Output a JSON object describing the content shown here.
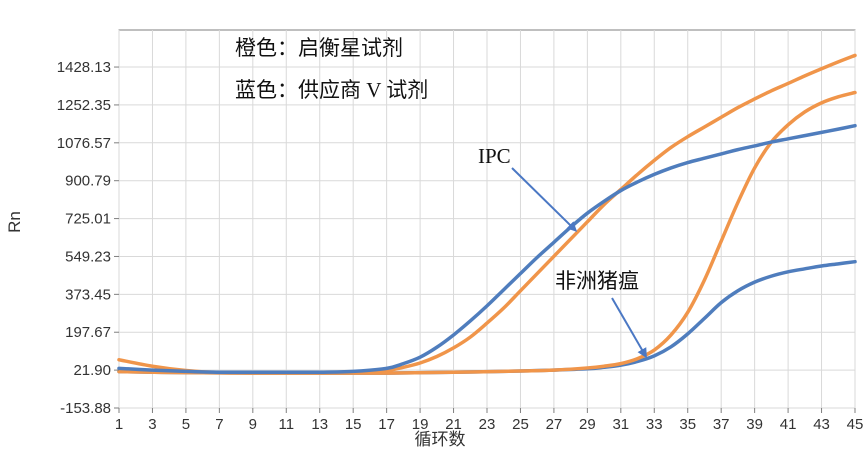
{
  "chart_data": {
    "type": "line",
    "xlabel": "循环数",
    "ylabel": "Rn",
    "xlim": [
      1,
      45
    ],
    "ylim": [
      -153.88,
      1600
    ],
    "grid": true,
    "x_ticks": [
      1,
      3,
      5,
      7,
      9,
      11,
      13,
      15,
      17,
      19,
      21,
      23,
      25,
      27,
      29,
      31,
      33,
      35,
      37,
      39,
      41,
      43,
      45
    ],
    "y_ticks": [
      {
        "label": "-153.88",
        "value": -153.88
      },
      {
        "label": "21.90",
        "value": 21.9
      },
      {
        "label": "197.67",
        "value": 197.67
      },
      {
        "label": "373.45",
        "value": 373.45
      },
      {
        "label": "549.23",
        "value": 549.23
      },
      {
        "label": "725.01",
        "value": 725.01
      },
      {
        "label": "900.79",
        "value": 900.79
      },
      {
        "label": "1076.57",
        "value": 1076.57
      },
      {
        "label": "1252.35",
        "value": 1252.35
      },
      {
        "label": "1428.13",
        "value": 1428.13
      }
    ],
    "legend_lines": [
      "橙色：启衡星试剂",
      "蓝色：供应商 V 试剂"
    ],
    "colors": {
      "orange": "#f0954a",
      "blue": "#4f7dbd",
      "arrow": "#4b78c4",
      "grid": "#d9d9d9",
      "axis": "#7f7f7f"
    },
    "series": [
      {
        "color": "orange",
        "x": [
          1,
          3,
          5,
          7,
          9,
          11,
          13,
          15,
          17,
          18,
          19,
          20,
          21,
          22,
          23,
          24,
          25,
          26,
          27,
          28,
          29,
          30,
          31,
          32,
          33,
          34,
          35,
          36,
          37,
          38,
          39,
          40,
          41,
          42,
          43,
          44,
          45
        ],
        "values": [
          70,
          40,
          20,
          10,
          10,
          10,
          10,
          12,
          20,
          35,
          55,
          85,
          125,
          175,
          240,
          310,
          390,
          470,
          550,
          630,
          710,
          790,
          860,
          930,
          995,
          1055,
          1105,
          1150,
          1195,
          1240,
          1280,
          1318,
          1352,
          1387,
          1420,
          1452,
          1482
        ]
      },
      {
        "color": "blue",
        "x": [
          1,
          3,
          5,
          7,
          9,
          11,
          13,
          15,
          17,
          18,
          19,
          20,
          21,
          22,
          23,
          24,
          25,
          26,
          27,
          28,
          29,
          30,
          31,
          32,
          33,
          34,
          35,
          36,
          37,
          38,
          39,
          40,
          41,
          42,
          43,
          44,
          45
        ],
        "values": [
          30,
          22,
          16,
          12,
          12,
          12,
          12,
          16,
          30,
          52,
          82,
          128,
          185,
          250,
          320,
          395,
          470,
          545,
          615,
          685,
          750,
          805,
          855,
          895,
          930,
          960,
          985,
          1005,
          1025,
          1045,
          1062,
          1080,
          1095,
          1110,
          1125,
          1140,
          1156
        ]
      },
      {
        "color": "orange",
        "x": [
          1,
          5,
          9,
          13,
          17,
          21,
          25,
          27,
          29,
          30,
          31,
          32,
          33,
          34,
          35,
          36,
          37,
          38,
          39,
          40,
          41,
          42,
          43,
          44,
          45
        ],
        "values": [
          15,
          10,
          8,
          8,
          8,
          12,
          18,
          22,
          32,
          40,
          52,
          75,
          115,
          185,
          290,
          440,
          620,
          800,
          960,
          1080,
          1160,
          1220,
          1262,
          1290,
          1310
        ]
      },
      {
        "color": "blue",
        "x": [
          1,
          5,
          9,
          13,
          17,
          21,
          25,
          27,
          29,
          30,
          31,
          32,
          33,
          34,
          35,
          36,
          37,
          38,
          39,
          40,
          41,
          42,
          43,
          44,
          45
        ],
        "values": [
          15,
          10,
          8,
          8,
          8,
          12,
          18,
          22,
          28,
          35,
          45,
          62,
          88,
          130,
          190,
          262,
          335,
          390,
          430,
          458,
          478,
          492,
          505,
          515,
          525
        ]
      }
    ],
    "annotations": [
      {
        "text": "IPC",
        "point_x": 28.3,
        "point_y": 670
      },
      {
        "text": "非洲猪瘟",
        "point_x": 32.5,
        "point_y": 85
      }
    ]
  }
}
